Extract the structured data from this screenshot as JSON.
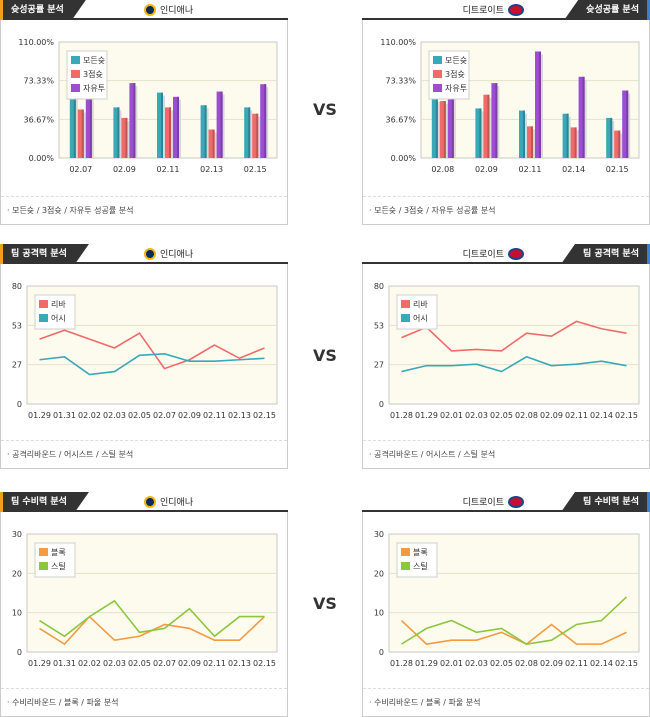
{
  "vs_label": "VS",
  "panels": {
    "shooting_left": {
      "tab": "슛성공률 분석",
      "team": "인디애나",
      "footer": "·  모든슛 / 3점슛 / 자유투 성공률 분석"
    },
    "shooting_right": {
      "tab": "슛성공률 분석",
      "team": "디트로이트",
      "footer": "·  모든슛 / 3점슛 / 자유투 성공률 분석"
    },
    "attack_left": {
      "tab": "팀 공격력 분석",
      "team": "인디애나",
      "footer": "·  공격리바운드 / 어시스트 / 스틸 분석"
    },
    "attack_right": {
      "tab": "팀 공격력 분석",
      "team": "디트로이트",
      "footer": "·  공격리바운드 / 어시스트 / 스틸 분석"
    },
    "defense_left": {
      "tab": "팀 수비력 분석",
      "team": "인디애나",
      "footer": "·  수비리바운드 / 블록 / 파울 분석"
    },
    "defense_right": {
      "tab": "팀 수비력 분석",
      "team": "디트로이트",
      "footer": "·  수비리바운드 / 블록 / 파울 분석"
    }
  },
  "colors": {
    "teal": "#3aa8b8",
    "red": "#f06a6a",
    "purple": "#9b4fd0",
    "orange": "#f59a40",
    "green": "#8cc63e",
    "plot_bg": "#fdfbee"
  },
  "chart_data": [
    {
      "id": "shooting_left",
      "type": "bar",
      "categories": [
        "02.07",
        "02.09",
        "02.11",
        "02.13",
        "02.15"
      ],
      "yticks": [
        "110.00%",
        "73.33%",
        "36.67%",
        "0.00%"
      ],
      "ylim": [
        0,
        110
      ],
      "series": [
        {
          "name": "모든슛",
          "color": "teal",
          "values": [
            62,
            48,
            62,
            50,
            48
          ]
        },
        {
          "name": "3점슛",
          "color": "red",
          "values": [
            46,
            38,
            48,
            27,
            42
          ]
        },
        {
          "name": "자유투",
          "color": "purple",
          "values": [
            80,
            71,
            58,
            63,
            70
          ]
        }
      ]
    },
    {
      "id": "shooting_right",
      "type": "bar",
      "categories": [
        "02.08",
        "02.09",
        "02.11",
        "02.14",
        "02.15"
      ],
      "yticks": [
        "110.00%",
        "73.33%",
        "36.67%",
        "0.00%"
      ],
      "ylim": [
        0,
        110
      ],
      "series": [
        {
          "name": "모든슛",
          "color": "teal",
          "values": [
            56,
            47,
            45,
            42,
            38
          ]
        },
        {
          "name": "3점슛",
          "color": "red",
          "values": [
            54,
            60,
            30,
            29,
            26
          ]
        },
        {
          "name": "자유투",
          "color": "purple",
          "values": [
            68,
            71,
            101,
            77,
            64
          ]
        }
      ]
    },
    {
      "id": "attack_left",
      "type": "line",
      "categories": [
        "01.29",
        "01.31",
        "02.02",
        "02.03",
        "02.05",
        "02.07",
        "02.09",
        "02.11",
        "02.13",
        "02.15"
      ],
      "yticks": [
        "80",
        "53",
        "27",
        "0"
      ],
      "ylim": [
        0,
        80
      ],
      "series": [
        {
          "name": "리바",
          "color": "red",
          "values": [
            44,
            50,
            44,
            38,
            48,
            24,
            30,
            40,
            31,
            38
          ]
        },
        {
          "name": "어시",
          "color": "teal",
          "values": [
            30,
            32,
            20,
            22,
            33,
            34,
            29,
            29,
            30,
            31
          ]
        }
      ]
    },
    {
      "id": "attack_right",
      "type": "line",
      "categories": [
        "01.28",
        "01.29",
        "02.01",
        "02.03",
        "02.05",
        "02.08",
        "02.09",
        "02.11",
        "02.14",
        "02.15"
      ],
      "yticks": [
        "80",
        "53",
        "27",
        "0"
      ],
      "ylim": [
        0,
        80
      ],
      "series": [
        {
          "name": "리바",
          "color": "red",
          "values": [
            45,
            52,
            36,
            37,
            36,
            48,
            46,
            56,
            51,
            48
          ]
        },
        {
          "name": "어시",
          "color": "teal",
          "values": [
            22,
            26,
            26,
            27,
            22,
            32,
            26,
            27,
            29,
            26
          ]
        }
      ]
    },
    {
      "id": "defense_left",
      "type": "line",
      "categories": [
        "01.29",
        "01.31",
        "02.02",
        "02.03",
        "02.05",
        "02.07",
        "02.09",
        "02.11",
        "02.13",
        "02.15"
      ],
      "yticks": [
        "30",
        "20",
        "10",
        "0"
      ],
      "ylim": [
        0,
        30
      ],
      "series": [
        {
          "name": "블록",
          "color": "orange",
          "values": [
            6,
            2,
            9,
            3,
            4,
            7,
            6,
            3,
            3,
            9
          ]
        },
        {
          "name": "스틸",
          "color": "green",
          "values": [
            8,
            4,
            9,
            13,
            5,
            6,
            11,
            4,
            9,
            9
          ]
        }
      ]
    },
    {
      "id": "defense_right",
      "type": "line",
      "categories": [
        "01.28",
        "01.29",
        "02.01",
        "02.03",
        "02.05",
        "02.08",
        "02.09",
        "02.11",
        "02.14",
        "02.15"
      ],
      "yticks": [
        "30",
        "20",
        "10",
        "0"
      ],
      "ylim": [
        0,
        30
      ],
      "series": [
        {
          "name": "블록",
          "color": "orange",
          "values": [
            8,
            2,
            3,
            3,
            5,
            2,
            7,
            2,
            2,
            5
          ]
        },
        {
          "name": "스틸",
          "color": "green",
          "values": [
            2,
            6,
            8,
            5,
            6,
            2,
            3,
            7,
            8,
            14
          ]
        }
      ]
    }
  ]
}
